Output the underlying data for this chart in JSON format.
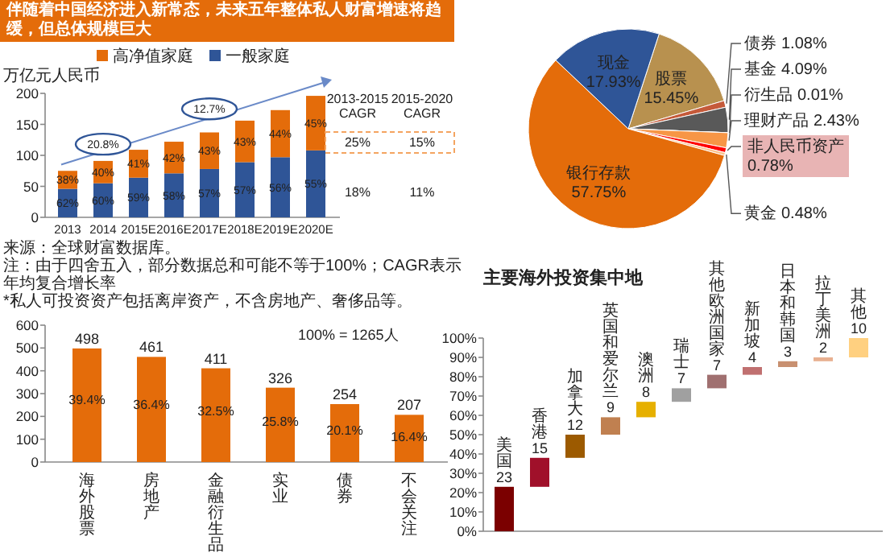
{
  "chart_data": [
    {
      "type": "bar",
      "stacked": true,
      "title": "伴随着中国经济进入新常态，未来五年整体私人财富增速将趋缓，但总体规模巨大",
      "ylabel": "万亿元人民币",
      "categories": [
        "2013",
        "2014",
        "2015E",
        "2016E",
        "2017E",
        "2018E",
        "2019E",
        "2020E"
      ],
      "series": [
        {
          "name": "一般家庭",
          "color": "#2f5597",
          "values": [
            46,
            55,
            64,
            71,
            78,
            89,
            97,
            108
          ]
        },
        {
          "name": "高净值家庭",
          "color": "#e46c0a",
          "values": [
            29,
            36,
            45,
            51,
            59,
            67,
            76,
            88
          ]
        }
      ],
      "ylim": [
        0,
        200
      ],
      "yticks": [
        0,
        50,
        100,
        150,
        200
      ],
      "legend": "top",
      "annotations": [
        "20.8%",
        "12.7%",
        "2013-2015",
        "CAGR",
        "2015-2020",
        "CAGR",
        "25%",
        "15%",
        "18%",
        "11%",
        "来源：全球财富数据库。",
        "注：由于四舍五入，部分数据总和可能不等于100%；CAGR表示年均复合增长率",
        "*私人可投资资产包括离岸资产，不含房地产、奢侈品等。",
        "62%",
        "60%",
        "59%",
        "58%",
        "57%",
        "57%",
        "56%",
        "55%",
        "38%",
        "40%",
        "41%",
        "42%",
        "43%",
        "43%",
        "44%",
        "45%"
      ]
    },
    {
      "type": "pie",
      "categories": [
        "股票",
        "债券",
        "基金",
        "衍生品",
        "理财产品",
        "非人民币资产",
        "黄金",
        "银行存款",
        "现金"
      ],
      "values": [
        15.45,
        1.08,
        4.09,
        0.01,
        2.43,
        0.78,
        0.48,
        57.75,
        17.93
      ],
      "colors": [
        "#b8914f",
        "#c55a3a",
        "#595959",
        "#8c8c8c",
        "#f79646",
        "#ff0000",
        "#fbc08a",
        "#e46c0a",
        "#2f5597"
      ],
      "value_labels": [
        "15.45%",
        "1.08%",
        "4.09%",
        "0.01%",
        "2.43%",
        "0.78%",
        "0.48%",
        "57.75%",
        "17.93%"
      ]
    },
    {
      "type": "bar",
      "categories": [
        "海外股票",
        "房地产",
        "金融衍生品",
        "实业",
        "债券",
        "不会关注"
      ],
      "values": [
        498,
        461,
        411,
        326,
        254,
        207
      ],
      "color": "#e46c0a",
      "ylim": [
        0,
        600
      ],
      "yticks": [
        0,
        100,
        200,
        300,
        400,
        500,
        600
      ],
      "data_labels": true,
      "annotations": [
        "39.4%",
        "36.4%",
        "32.5%",
        "25.8%",
        "20.1%",
        "16.4%",
        "100% = 1265人"
      ]
    },
    {
      "type": "bar",
      "title": "主要海外投资集中地",
      "categories": [
        "美国",
        "香港",
        "加拿大",
        "英国和爱尔兰",
        "澳洲",
        "瑞士",
        "其他欧洲国家",
        "新加坡",
        "日本和韩国",
        "拉丁美洲",
        "其他"
      ],
      "values": [
        23,
        15,
        12,
        9,
        8,
        7,
        7,
        4,
        3,
        2,
        10
      ],
      "base": [
        0,
        23,
        38,
        50,
        59,
        67,
        74,
        81,
        85,
        88,
        90
      ],
      "colors": [
        "#7b0000",
        "#a0102a",
        "#9c5a00",
        "#c08050",
        "#e6b000",
        "#a0a0a0",
        "#a07070",
        "#c07070",
        "#c89070",
        "#e8b090",
        "#ffd080"
      ],
      "ylim": [
        0,
        100
      ],
      "yticks": [
        {
          "value": 0,
          "label": "0%"
        },
        {
          "value": 10,
          "label": "10%"
        },
        {
          "value": 20,
          "label": "20%"
        },
        {
          "value": 30,
          "label": "30%"
        },
        {
          "value": 40,
          "label": "40%"
        },
        {
          "value": 50,
          "label": "50%"
        },
        {
          "value": 60,
          "label": "60%"
        },
        {
          "value": 70,
          "label": "70%"
        },
        {
          "value": 80,
          "label": "80%"
        },
        {
          "value": 90,
          "label": "90%"
        },
        {
          "value": 100,
          "label": "100%"
        }
      ],
      "data_labels": true
    }
  ]
}
